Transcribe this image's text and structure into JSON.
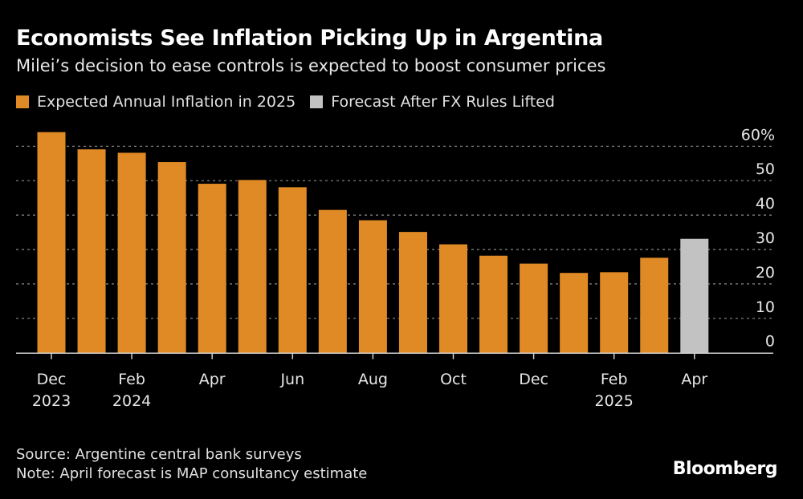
{
  "chart_data": {
    "type": "bar",
    "title": "Economists See Inflation Picking Up in Argentina",
    "subtitle": "Milei’s decision to ease controls is expected to boost consumer prices",
    "categories": [
      "Dec 2023",
      "Jan 2024",
      "Feb 2024",
      "Mar 2024",
      "Apr 2024",
      "May 2024",
      "Jun 2024",
      "Jul 2024",
      "Aug 2024",
      "Sep 2024",
      "Oct 2024",
      "Nov 2024",
      "Dec 2024",
      "Jan 2025",
      "Feb 2025",
      "Mar 2025",
      "Apr 2025"
    ],
    "series": [
      {
        "name": "Expected Annual Inflation in 2025",
        "color": "#e08a25",
        "values": [
          64.1,
          59.1,
          58.1,
          55.4,
          49.1,
          50.2,
          48.1,
          41.5,
          38.5,
          35.1,
          31.5,
          28.2,
          25.9,
          23.2,
          23.4,
          27.6,
          null
        ]
      },
      {
        "name": "Forecast After FX Rules Lifted",
        "color": "#c2c2c2",
        "values": [
          null,
          null,
          null,
          null,
          null,
          null,
          null,
          null,
          null,
          null,
          null,
          null,
          null,
          null,
          null,
          null,
          33.1
        ]
      }
    ],
    "x_tick_labels": [
      {
        "index": 0,
        "line1": "Dec",
        "line2": "2023"
      },
      {
        "index": 2,
        "line1": "Feb",
        "line2": "2024"
      },
      {
        "index": 4,
        "line1": "Apr",
        "line2": ""
      },
      {
        "index": 6,
        "line1": "Jun",
        "line2": ""
      },
      {
        "index": 8,
        "line1": "Aug",
        "line2": ""
      },
      {
        "index": 10,
        "line1": "Oct",
        "line2": ""
      },
      {
        "index": 12,
        "line1": "Dec",
        "line2": ""
      },
      {
        "index": 14,
        "line1": "Feb",
        "line2": "2025"
      },
      {
        "index": 16,
        "line1": "Apr",
        "line2": ""
      }
    ],
    "y_ticks": [
      0,
      10,
      20,
      30,
      40,
      50,
      60
    ],
    "y_tick_labels": [
      "0",
      "10",
      "20",
      "30",
      "40",
      "50",
      "60%"
    ],
    "ylim": [
      0,
      60
    ],
    "y_axis_position": "right",
    "grid": true,
    "legend_placement": "top-left"
  },
  "footer": {
    "source": "Source: Argentine central bank surveys",
    "note": "Note: April forecast is MAP consultancy estimate"
  },
  "brand": "Bloomberg"
}
